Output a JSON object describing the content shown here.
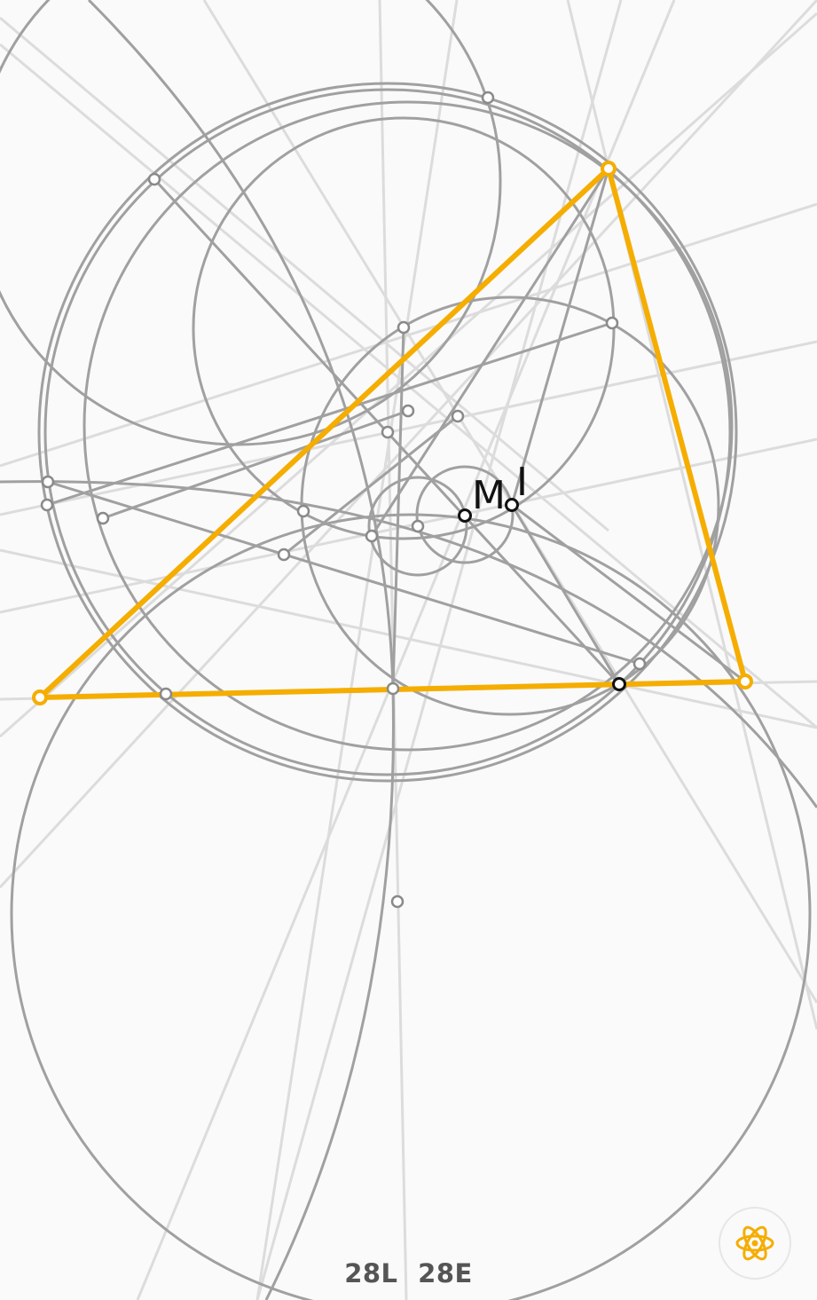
{
  "labels": {
    "m": "M",
    "i": "I"
  },
  "counters": {
    "lines": "28L",
    "elements": "28E"
  },
  "hint_button": {
    "icon": "atom-icon"
  },
  "colors": {
    "background": "#fafafa",
    "triangle": "#f5ad00",
    "construction": "#a0a0a0",
    "faint_line": "#dcdcdc",
    "counter_text": "#555555"
  }
}
